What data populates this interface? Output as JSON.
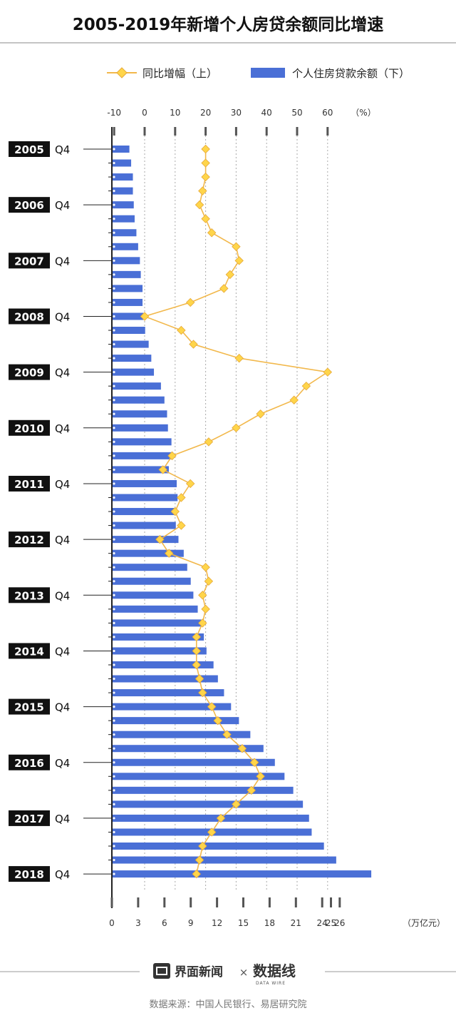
{
  "title": "2005-2019年新增个人房贷余额同比增速",
  "legend": {
    "line_label": "同比增幅（上）",
    "bar_label": "个人住房贷款余额（下）"
  },
  "colors": {
    "line": "#f2b84b",
    "marker": "#ffd54a",
    "bar": "#4a6fd6",
    "axis": "#222222",
    "grid": "#aaaaaa"
  },
  "chart_data": {
    "type": "bar+line",
    "top_axis": {
      "ticks": [
        "-10",
        "0",
        "10",
        "20",
        "30",
        "40",
        "50",
        "60"
      ],
      "unit": "（%）",
      "range": [
        -10,
        60
      ]
    },
    "bottom_axis": {
      "ticks": [
        "0",
        "3",
        "6",
        "9",
        "12",
        "15",
        "18",
        "21",
        "24",
        "25",
        "26"
      ],
      "unit": "（万亿元）",
      "range": [
        0,
        30
      ]
    },
    "year_labels": [
      "2005",
      "2006",
      "2007",
      "2008",
      "2009",
      "2010",
      "2011",
      "2012",
      "2013",
      "2014",
      "2015",
      "2016",
      "2017",
      "2018"
    ],
    "quarter_label": "Q4",
    "bar_values": [
      2.0,
      2.2,
      2.4,
      2.4,
      2.5,
      2.6,
      2.8,
      3.0,
      3.2,
      3.3,
      3.5,
      3.5,
      3.6,
      3.8,
      4.2,
      4.5,
      4.8,
      5.6,
      6.0,
      6.3,
      6.4,
      6.8,
      7.0,
      6.5,
      7.4,
      7.5,
      7.3,
      7.3,
      7.6,
      8.2,
      8.6,
      9.0,
      9.3,
      9.8,
      10.2,
      10.5,
      10.8,
      11.6,
      12.1,
      12.8,
      13.6,
      14.5,
      15.8,
      17.3,
      18.6,
      19.7,
      20.7,
      21.8,
      22.5,
      22.8,
      24.2,
      25.6,
      29.6
    ],
    "line_values": [
      20,
      20,
      20,
      19,
      18,
      20,
      22,
      30,
      31,
      28,
      26,
      15,
      0,
      12,
      16,
      31,
      60,
      53,
      49,
      38,
      30,
      21,
      9,
      6,
      15,
      12,
      10,
      12,
      5,
      8,
      20,
      21,
      19,
      20,
      19,
      17,
      17,
      17,
      18,
      19,
      22,
      24,
      27,
      32,
      36,
      38,
      35,
      30,
      25,
      22,
      19,
      18,
      17
    ]
  },
  "footer": {
    "logo_left": "界面新闻",
    "times": "×",
    "logo_right": "数据线",
    "logo_right_sub": "DATA WIRE",
    "source": "数据来源：中国人民银行、易居研究院"
  }
}
